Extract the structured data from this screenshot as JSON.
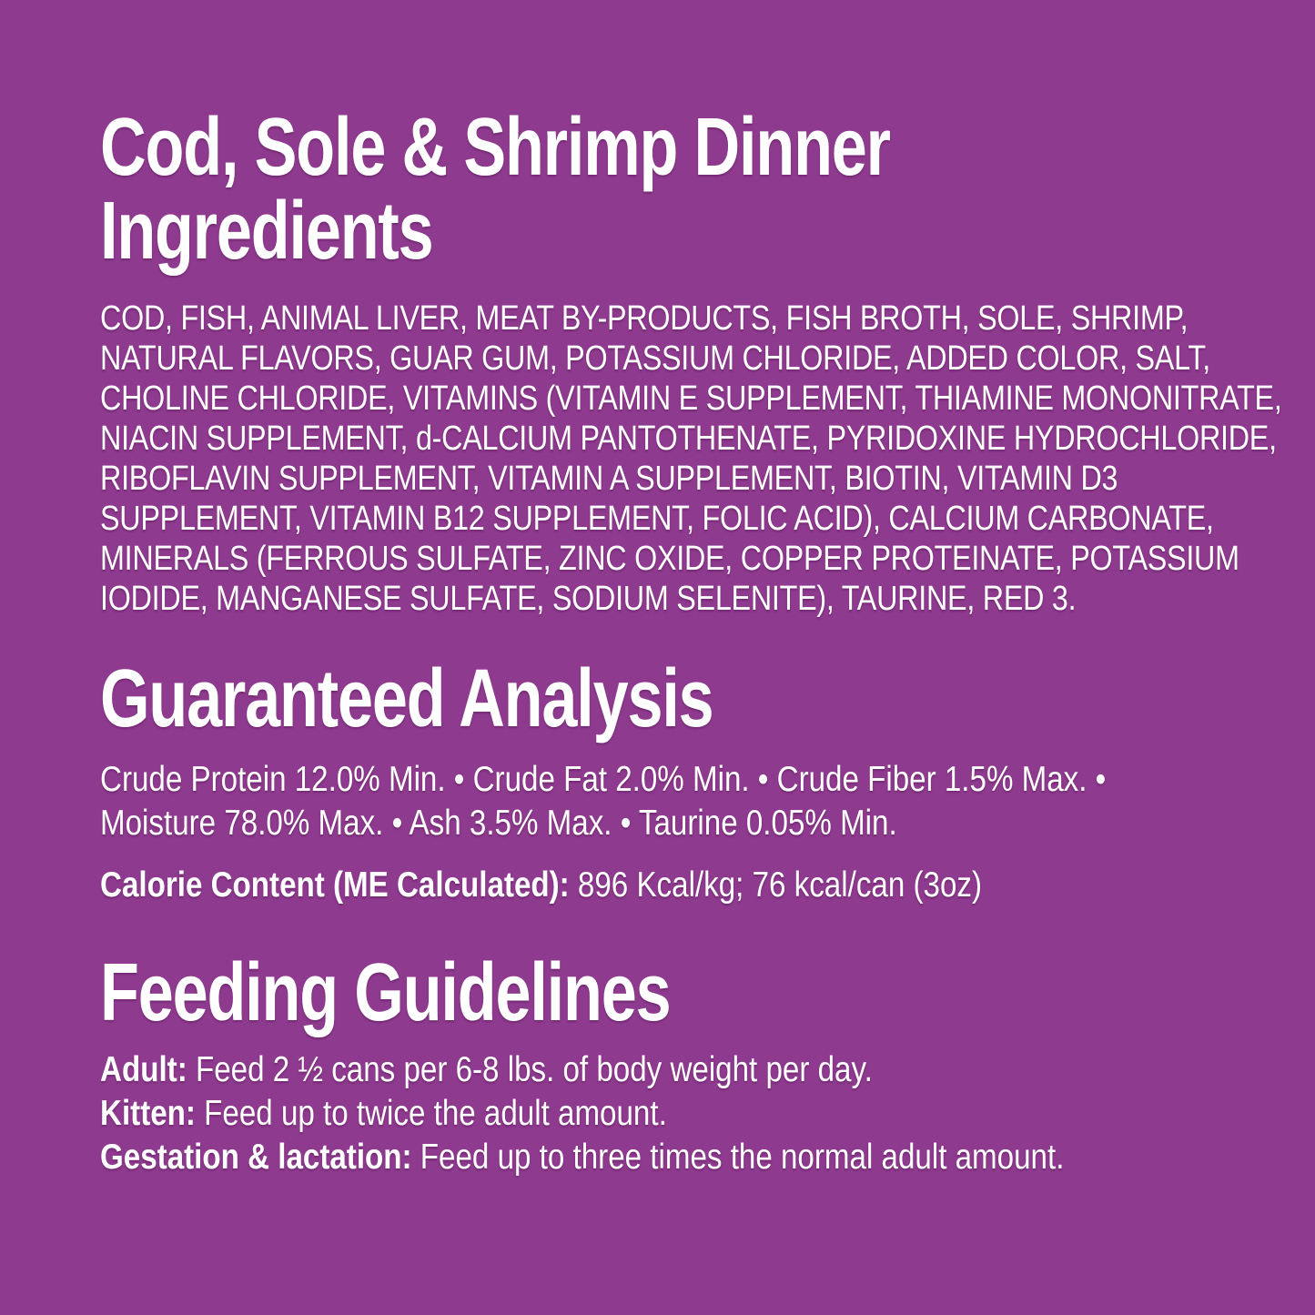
{
  "page": {
    "background_color": "#8e3a8e",
    "text_color": "#ffffff"
  },
  "title": {
    "lines": [
      "Cod, Sole & Shrimp Dinner",
      "Ingredients"
    ]
  },
  "ingredients": {
    "lines": [
      "COD, FISH, ANIMAL LIVER, MEAT BY-PRODUCTS, FISH BROTH, SOLE, SHRIMP,",
      "NATURAL FLAVORS, GUAR GUM, POTASSIUM CHLORIDE, ADDED COLOR, SALT,",
      "CHOLINE CHLORIDE, VITAMINS (VITAMIN E SUPPLEMENT, THIAMINE MONONITRATE,",
      "NIACIN SUPPLEMENT, d-CALCIUM PANTOTHENATE, PYRIDOXINE HYDROCHLORIDE,",
      "RIBOFLAVIN SUPPLEMENT, VITAMIN A SUPPLEMENT, BIOTIN, VITAMIN D3",
      "SUPPLEMENT, VITAMIN B12 SUPPLEMENT, FOLIC ACID), CALCIUM CARBONATE,",
      "MINERALS (FERROUS SULFATE, ZINC OXIDE, COPPER PROTEINATE, POTASSIUM",
      "IODIDE, MANGANESE SULFATE, SODIUM SELENITE), TAURINE, RED 3."
    ]
  },
  "guaranteed_analysis": {
    "heading": "Guaranteed Analysis",
    "lines": [
      "Crude Protein 12.0% Min. • Crude Fat 2.0% Min. • Crude Fiber 1.5% Max. •",
      "Moisture 78.0% Max. • Ash 3.5% Max. • Taurine 0.05% Min."
    ],
    "calorie_label": "Calorie Content (ME Calculated):",
    "calorie_value": "896 Kcal/kg; 76 kcal/can (3oz)"
  },
  "feeding_guidelines": {
    "heading": "Feeding Guidelines",
    "items": [
      {
        "label": "Adult:",
        "text": "Feed 2 ½ cans per 6-8 lbs. of body weight per day."
      },
      {
        "label": "Kitten:",
        "text": "Feed up to twice the adult amount."
      },
      {
        "label": "Gestation & lactation:",
        "text": "Feed up to three times the normal adult amount."
      }
    ]
  }
}
